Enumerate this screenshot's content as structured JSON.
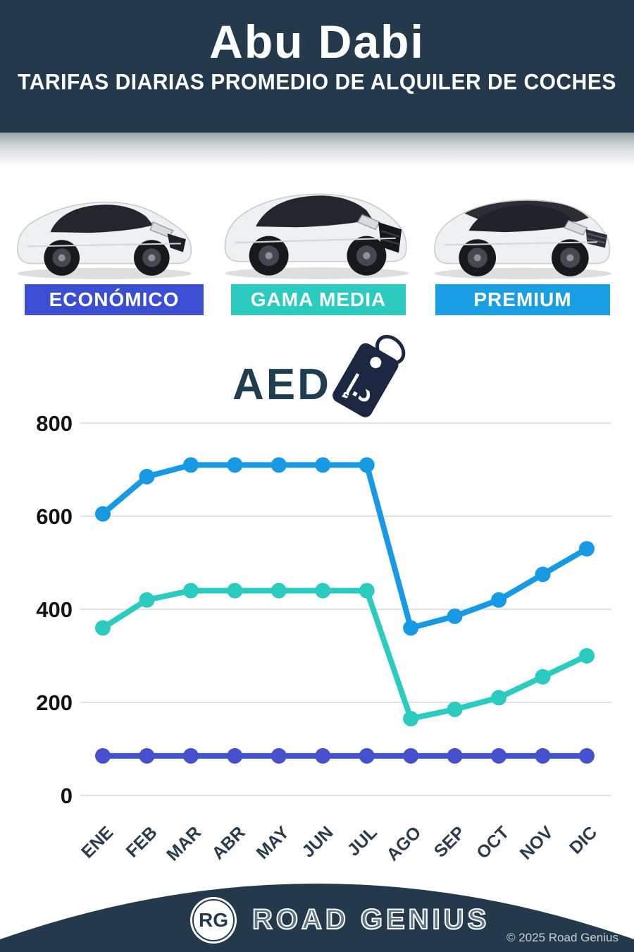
{
  "header": {
    "title": "Abu Dabi",
    "subtitle": "TARIFAS DIARIAS PROMEDIO DE ALQUILER DE COCHES",
    "bg_color": "#243a4c"
  },
  "categories": [
    {
      "label": "ECONÓMICO",
      "color": "#3b4ed4"
    },
    {
      "label": "GAMA MEDIA",
      "color": "#2bccbf"
    },
    {
      "label": "PREMIUM",
      "color": "#1b9fe4"
    }
  ],
  "currency": {
    "label": "AED",
    "tag_symbol": "د.إ"
  },
  "chart_data": {
    "type": "line",
    "categories": [
      "ENE",
      "FEB",
      "MAR",
      "ABR",
      "MAY",
      "JUN",
      "JUL",
      "AGO",
      "SEP",
      "OCT",
      "NOV",
      "DIC"
    ],
    "series": [
      {
        "name": "PREMIUM",
        "color": "#1899e4",
        "values": [
          605,
          685,
          710,
          710,
          710,
          710,
          710,
          360,
          385,
          420,
          475,
          530
        ]
      },
      {
        "name": "GAMA MEDIA",
        "color": "#2bccbf",
        "values": [
          360,
          420,
          440,
          440,
          440,
          440,
          440,
          165,
          185,
          210,
          255,
          300
        ]
      },
      {
        "name": "ECONÓMICO",
        "color": "#4751cd",
        "values": [
          85,
          85,
          85,
          85,
          85,
          85,
          85,
          85,
          85,
          85,
          85,
          85
        ]
      }
    ],
    "ylabel": "AED",
    "ylim": [
      0,
      800
    ],
    "yticks": [
      0,
      200,
      400,
      600,
      800
    ],
    "grid": true,
    "legend_position": "none"
  },
  "footer": {
    "logo_initials": "RG",
    "brand": "ROAD GENIUS",
    "copyright": "© 2025 Road Genius"
  }
}
